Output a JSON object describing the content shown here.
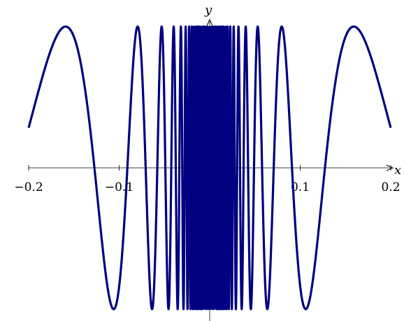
{
  "chart_data": {
    "type": "line",
    "title": "",
    "xlabel": "x",
    "ylabel": "y",
    "xlim": [
      -0.2,
      0.2
    ],
    "ylim": [
      -1,
      1
    ],
    "x_ticks": [
      -0.2,
      -0.1,
      0.1,
      0.2
    ],
    "x_tick_labels": [
      "−0.2",
      "−0.1",
      "0.1",
      "0.2"
    ],
    "y_ticks": [
      -0.9,
      0.9
    ],
    "grid": false,
    "legend": "none",
    "series": [
      {
        "function": "cos(1/x)",
        "color": "#000080",
        "x": [
          -0.2,
          -0.19,
          -0.18,
          -0.17,
          -0.16,
          -0.15,
          -0.14,
          -0.13,
          -0.12,
          -0.11,
          -0.1,
          -0.09,
          -0.08,
          -0.07,
          -0.06,
          -0.05,
          0.05,
          0.06,
          0.07,
          0.08,
          0.09,
          0.1,
          0.11,
          0.12,
          0.13,
          0.14,
          0.15,
          0.16,
          0.17,
          0.18,
          0.19,
          0.2
        ],
        "y": [
          0.28,
          0.52,
          0.75,
          0.92,
          1.0,
          0.94,
          0.66,
          0.16,
          -0.47,
          -0.95,
          -0.84,
          0.12,
          0.99,
          -0.12,
          0.55,
          -0.41,
          -0.41,
          0.55,
          -0.12,
          0.99,
          0.12,
          -0.84,
          -0.95,
          -0.47,
          0.16,
          0.66,
          0.94,
          1.0,
          0.92,
          0.75,
          0.52,
          0.28
        ]
      }
    ],
    "axis_color": "#000000"
  }
}
